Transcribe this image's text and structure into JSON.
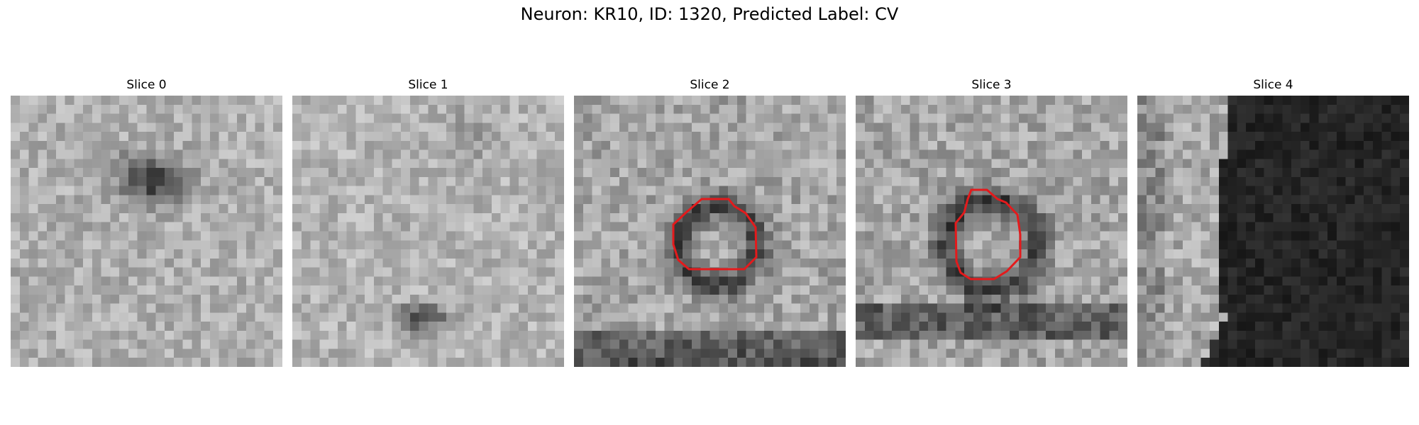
{
  "figure": {
    "suptitle": "Neuron: KR10, ID: 1320, Predicted Label: CV"
  },
  "panels": [
    {
      "title": "Slice 0",
      "has_contour": false
    },
    {
      "title": "Slice 1",
      "has_contour": false
    },
    {
      "title": "Slice 2",
      "has_contour": true
    },
    {
      "title": "Slice 3",
      "has_contour": true
    },
    {
      "title": "Slice 4",
      "has_contour": false
    }
  ],
  "contour_color": "#e41a1c"
}
